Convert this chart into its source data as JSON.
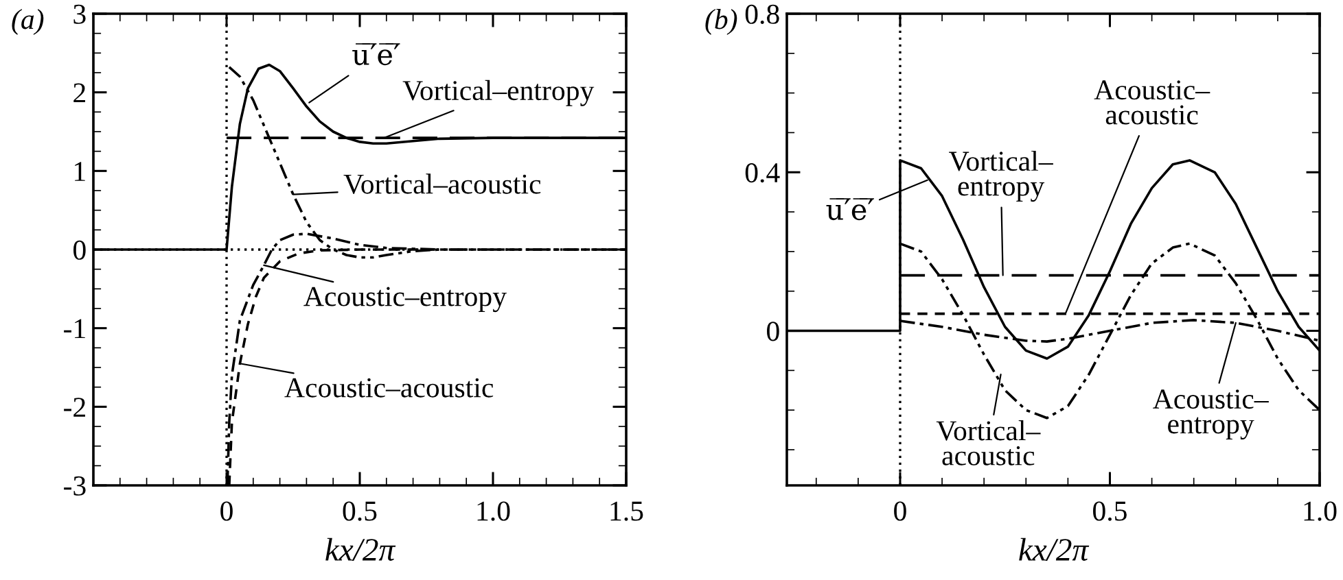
{
  "chart_data": [
    {
      "type": "line",
      "title": "(a)",
      "xlabel": "kx/2π",
      "xlim": [
        -0.5,
        1.5
      ],
      "xticks": [
        0,
        0.5,
        {
          "value": 1,
          "label": "1.0"
        },
        1.5
      ],
      "ylim": [
        -3,
        3
      ],
      "yticks": [
        -3,
        -2,
        -1,
        0,
        1,
        2,
        3
      ],
      "grid": false,
      "ref_lines": [
        {
          "axis": "x",
          "value": 0,
          "line_style": "dotted",
          "color": "#000000"
        },
        {
          "axis": "y",
          "value": 0,
          "line_style": "dotted",
          "color": "#000000"
        }
      ],
      "annotations": [
        {
          "text": "u̅′̅e̅′̅",
          "x": 0.31,
          "y": 1.87
        },
        {
          "text": "Vortical–entropy",
          "x": 0.59,
          "y": 1.42
        },
        {
          "text": "Vortical–acoustic",
          "x": 0.25,
          "y": 0.7
        },
        {
          "text": "Acoustic–entropy",
          "x": 0.14,
          "y": -0.2
        },
        {
          "text": "Acoustic–acoustic",
          "x": 0.05,
          "y": -1.45
        }
      ],
      "series": [
        {
          "color": "#000000",
          "line_style": "solid",
          "x": [
            -0.5,
            0,
            0.02,
            0.05,
            0.08,
            0.12,
            0.16,
            0.2,
            0.25,
            0.3,
            0.35,
            0.4,
            0.45,
            0.5,
            0.55,
            0.6,
            0.7,
            0.8,
            1.0,
            1.5
          ],
          "values": [
            0,
            0,
            0.8,
            1.6,
            2.05,
            2.3,
            2.35,
            2.27,
            2.05,
            1.82,
            1.63,
            1.5,
            1.42,
            1.37,
            1.35,
            1.35,
            1.38,
            1.41,
            1.42,
            1.42
          ]
        },
        {
          "color": "#000000",
          "line_style": "longdash",
          "x": [
            0,
            1.5
          ],
          "values": [
            1.42,
            1.42
          ]
        },
        {
          "color": "#000000",
          "line_style": "dashdotdot",
          "x": [
            0.01,
            0.05,
            0.1,
            0.15,
            0.2,
            0.25,
            0.3,
            0.35,
            0.4,
            0.45,
            0.5,
            0.55,
            0.6,
            0.7,
            0.8,
            1.5
          ],
          "values": [
            2.32,
            2.2,
            1.9,
            1.5,
            1.1,
            0.7,
            0.35,
            0.12,
            0,
            -0.07,
            -0.1,
            -0.1,
            -0.07,
            -0.02,
            0,
            0
          ]
        },
        {
          "color": "#000000",
          "line_style": "dashdot",
          "x": [
            0.003,
            0.01,
            0.02,
            0.05,
            0.1,
            0.14,
            0.17,
            0.2,
            0.25,
            0.3,
            0.4,
            0.5,
            0.6,
            0.8,
            1.5
          ],
          "values": [
            -3,
            -2.2,
            -1.6,
            -0.9,
            -0.45,
            -0.2,
            0,
            0.12,
            0.19,
            0.2,
            0.14,
            0.06,
            0.02,
            0,
            0
          ]
        },
        {
          "color": "#000000",
          "line_style": "dashed",
          "x": [
            0.01,
            0.02,
            0.05,
            0.08,
            0.11,
            0.14,
            0.2,
            0.27,
            0.35,
            0.5,
            0.8
          ],
          "values": [
            -3,
            -2.2,
            -1.45,
            -0.95,
            -0.6,
            -0.36,
            -0.15,
            -0.05,
            -0.01,
            0,
            0
          ]
        }
      ]
    },
    {
      "type": "line",
      "title": "(b)",
      "xlabel": "kx/2π",
      "xlim": [
        -0.27,
        1.0
      ],
      "xticks": [
        0,
        0.5,
        {
          "value": 1,
          "label": "1.0"
        }
      ],
      "ylim": [
        -0.39,
        0.8
      ],
      "yticks": [
        0,
        0.4,
        0.8
      ],
      "grid": false,
      "ref_lines": [
        {
          "axis": "x",
          "value": 0,
          "line_style": "dotted",
          "color": "#000000"
        }
      ],
      "annotations": [
        {
          "text": "u̅′̅e̅′̅",
          "x": 0.065,
          "y": 0.38
        },
        {
          "text": "Vortical–\nentropy",
          "x": 0.245,
          "y": 0.14
        },
        {
          "text": "Acoustic–\nacoustic",
          "x": 0.394,
          "y": 0.043
        },
        {
          "text": "Vortical–\nacoustic",
          "x": 0.24,
          "y": -0.11
        },
        {
          "text": "Acoustic–\nentropy",
          "x": 0.8,
          "y": 0.02
        }
      ],
      "series": [
        {
          "color": "#000000",
          "line_style": "solid",
          "x": [
            -0.27,
            0,
            0,
            0.05,
            0.1,
            0.15,
            0.2,
            0.25,
            0.3,
            0.35,
            0.4,
            0.45,
            0.5,
            0.55,
            0.6,
            0.65,
            0.69,
            0.75,
            0.8,
            0.85,
            0.9,
            0.95,
            1.0
          ],
          "values": [
            0,
            0,
            0.43,
            0.41,
            0.34,
            0.23,
            0.11,
            0.01,
            -0.05,
            -0.07,
            -0.04,
            0.04,
            0.15,
            0.27,
            0.36,
            0.42,
            0.43,
            0.4,
            0.32,
            0.21,
            0.1,
            0.01,
            -0.05
          ]
        },
        {
          "color": "#000000",
          "line_style": "longdash",
          "x": [
            0,
            1.0
          ],
          "values": [
            0.14,
            0.14
          ]
        },
        {
          "color": "#000000",
          "line_style": "dashed",
          "x": [
            0,
            1.0
          ],
          "values": [
            0.043,
            0.043
          ]
        },
        {
          "color": "#000000",
          "line_style": "dashdotdot",
          "x": [
            0,
            0.05,
            0.1,
            0.15,
            0.2,
            0.25,
            0.3,
            0.35,
            0.4,
            0.45,
            0.5,
            0.55,
            0.6,
            0.65,
            0.69,
            0.75,
            0.8,
            0.85,
            0.9,
            0.95,
            1.0
          ],
          "values": [
            0.22,
            0.2,
            0.13,
            0.04,
            -0.06,
            -0.15,
            -0.2,
            -0.22,
            -0.19,
            -0.11,
            -0.01,
            0.09,
            0.17,
            0.21,
            0.22,
            0.19,
            0.12,
            0.03,
            -0.07,
            -0.15,
            -0.2
          ]
        },
        {
          "color": "#000000",
          "line_style": "dashdot",
          "x": [
            0,
            0.1,
            0.2,
            0.3,
            0.35,
            0.4,
            0.5,
            0.6,
            0.7,
            0.8,
            0.9,
            1.0
          ],
          "values": [
            0.025,
            0.01,
            -0.01,
            -0.025,
            -0.027,
            -0.02,
            0,
            0.02,
            0.027,
            0.02,
            0,
            -0.025
          ]
        }
      ]
    }
  ]
}
